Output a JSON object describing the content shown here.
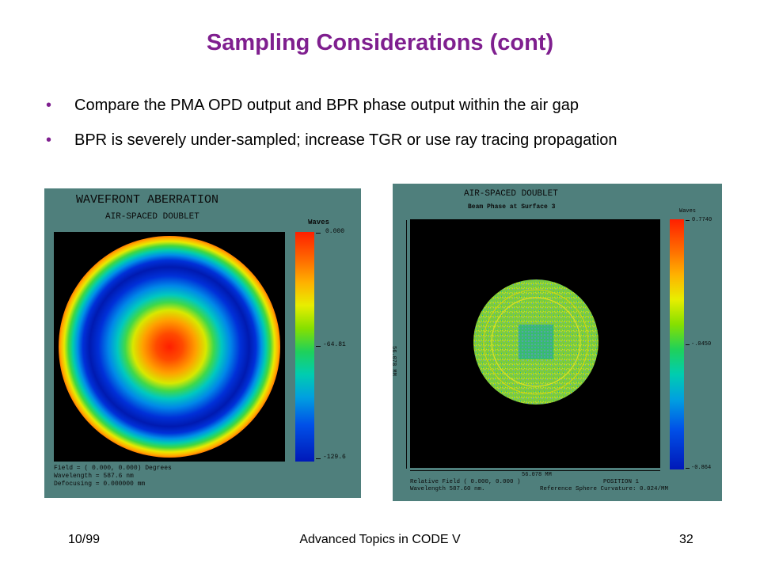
{
  "slide": {
    "title": "Sampling Considerations (cont)",
    "bullets": [
      "Compare the PMA OPD output and BPR phase output within the air gap",
      "BPR is severely under-sampled; increase TGR or use ray tracing propagation"
    ],
    "bullet_marker": "•"
  },
  "panel_left": {
    "title": "WAVEFRONT ABERRATION",
    "subtitle": "AIR-SPACED DOUBLET",
    "colorbar_label": "Waves",
    "colorbar_top": "0.000",
    "colorbar_mid": "-64.81",
    "colorbar_bottom": "-129.6",
    "info": [
      "Field = ( 0.000, 0.000) Degrees",
      "Wavelength =    587.6 nm",
      "Defocusing = 0.000000 mm"
    ]
  },
  "panel_right": {
    "title": "AIR-SPACED DOUBLET",
    "subtitle": "Beam Phase at Surface 3",
    "colorbar_label": "Waves",
    "colorbar_top": "0.7740",
    "colorbar_mid": "-.0450",
    "colorbar_bottom": "-0.864",
    "x_extent": "56.078 MM",
    "y_extent": "56.078 MM",
    "info_line1_left": "Relative Field (  0.000,    0.000 )",
    "info_line1_right": "POSITION  1",
    "info_line2_left": "Wavelength   587.60 nm.",
    "info_line2_right": "Reference Sphere Curvature:  0.024/MM"
  },
  "footer": {
    "date": "10/99",
    "center": "Advanced Topics in CODE V",
    "page": "32"
  },
  "colors": {
    "title": "#7f1f8f",
    "panel_bg": "#4f7f7c"
  }
}
